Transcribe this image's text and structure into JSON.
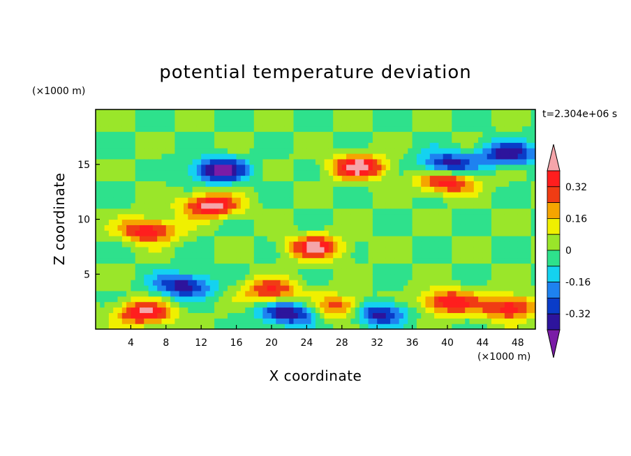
{
  "chart_data": {
    "type": "heatmap",
    "title": "potential temperature deviation",
    "xlabel": "X coordinate",
    "ylabel": "Z coordinate",
    "x_unit": "(×1000 m)",
    "y_unit": "(×1000 m)",
    "time_label": "t=2.304e+06 s",
    "xlim": [
      0,
      50
    ],
    "ylim": [
      0,
      20
    ],
    "x_ticks": [
      "4",
      "8",
      "12",
      "16",
      "20",
      "24",
      "28",
      "32",
      "36",
      "40",
      "44",
      "48"
    ],
    "y_ticks": [
      "5",
      "10",
      "15"
    ],
    "x_tick_values": [
      4,
      8,
      12,
      16,
      20,
      24,
      28,
      32,
      36,
      40,
      44,
      48
    ],
    "y_tick_values": [
      5,
      10,
      15
    ],
    "colorbar": {
      "levels": [
        -0.4,
        -0.32,
        -0.24,
        -0.16,
        -0.08,
        0,
        0.08,
        0.16,
        0.24,
        0.32,
        0.4
      ],
      "colors": [
        "#7a1ca6",
        "#2d149c",
        "#0a3cc8",
        "#1e82f0",
        "#14d2f0",
        "#2ee18c",
        "#9ae62a",
        "#f0f000",
        "#f5a500",
        "#f03c14",
        "#ff1e1e",
        "#f5a5aa"
      ],
      "tick_labels": [
        "0.32",
        "0.16",
        "0",
        "-0.16",
        "-0.32"
      ],
      "tick_values": [
        0.32,
        0.16,
        0,
        -0.16,
        -0.32
      ],
      "extend": "both"
    },
    "features": [
      {
        "x": 13,
        "z": 11.3,
        "value": 0.45
      },
      {
        "x": 30,
        "z": 14.8,
        "value": 0.45
      },
      {
        "x": 40,
        "z": 13.5,
        "value": 0.42
      },
      {
        "x": 14,
        "z": 14.5,
        "value": -0.45
      },
      {
        "x": 47,
        "z": 16.0,
        "value": -0.38
      },
      {
        "x": 40,
        "z": 15.0,
        "value": -0.4
      },
      {
        "x": 6,
        "z": 9.0,
        "value": 0.4
      },
      {
        "x": 25,
        "z": 7.5,
        "value": 0.4
      },
      {
        "x": 5.5,
        "z": 1.5,
        "value": 0.42
      },
      {
        "x": 40,
        "z": 2.5,
        "value": 0.4
      },
      {
        "x": 47,
        "z": 2.0,
        "value": 0.4
      },
      {
        "x": 22,
        "z": 1.5,
        "value": -0.4
      },
      {
        "x": 32,
        "z": 1.5,
        "value": -0.4
      },
      {
        "x": 10,
        "z": 4.0,
        "value": -0.38
      },
      {
        "x": 20,
        "z": 3.5,
        "value": 0.35
      },
      {
        "x": 28,
        "z": 2.0,
        "value": 0.35
      }
    ]
  }
}
